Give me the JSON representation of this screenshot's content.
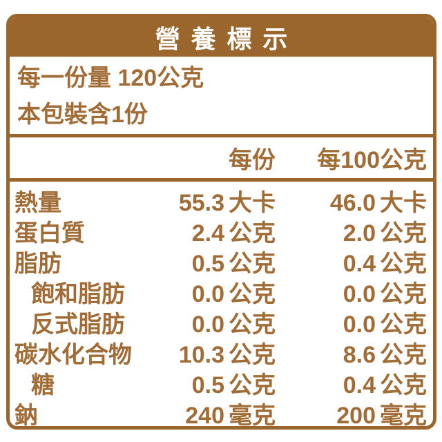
{
  "colors": {
    "brand_brown": "#9B662C",
    "text_brown": "#A16C35",
    "title_text": "#FFFFFF",
    "background": "#FFFFFF"
  },
  "title": "營養標示",
  "serving_info": {
    "line1": "每一份量 120公克",
    "line2": "本包裝含1份"
  },
  "column_headers": {
    "per_serving": "每份",
    "per_100g": "每100公克"
  },
  "table": {
    "rows": [
      {
        "label": "熱量",
        "indent": false,
        "per_serving_value": "55.3",
        "per_serving_unit": "大卡",
        "per_100g_value": "46.0",
        "per_100g_unit": "大卡"
      },
      {
        "label": "蛋白質",
        "indent": false,
        "per_serving_value": "2.4",
        "per_serving_unit": "公克",
        "per_100g_value": "2.0",
        "per_100g_unit": "公克"
      },
      {
        "label": "脂肪",
        "indent": false,
        "per_serving_value": "0.5",
        "per_serving_unit": "公克",
        "per_100g_value": "0.4",
        "per_100g_unit": "公克"
      },
      {
        "label": "飽和脂肪",
        "indent": true,
        "per_serving_value": "0.0",
        "per_serving_unit": "公克",
        "per_100g_value": "0.0",
        "per_100g_unit": "公克"
      },
      {
        "label": "反式脂肪",
        "indent": true,
        "per_serving_value": "0.0",
        "per_serving_unit": "公克",
        "per_100g_value": "0.0",
        "per_100g_unit": "公克"
      },
      {
        "label": "碳水化合物",
        "indent": false,
        "per_serving_value": "10.3",
        "per_serving_unit": "公克",
        "per_100g_value": "8.6",
        "per_100g_unit": "公克"
      },
      {
        "label": "糖",
        "indent": true,
        "per_serving_value": "0.5",
        "per_serving_unit": "公克",
        "per_100g_value": "0.4",
        "per_100g_unit": "公克"
      },
      {
        "label": "鈉",
        "indent": false,
        "per_serving_value": "240",
        "per_serving_unit": "毫克",
        "per_100g_value": "200",
        "per_100g_unit": "毫克"
      }
    ]
  }
}
